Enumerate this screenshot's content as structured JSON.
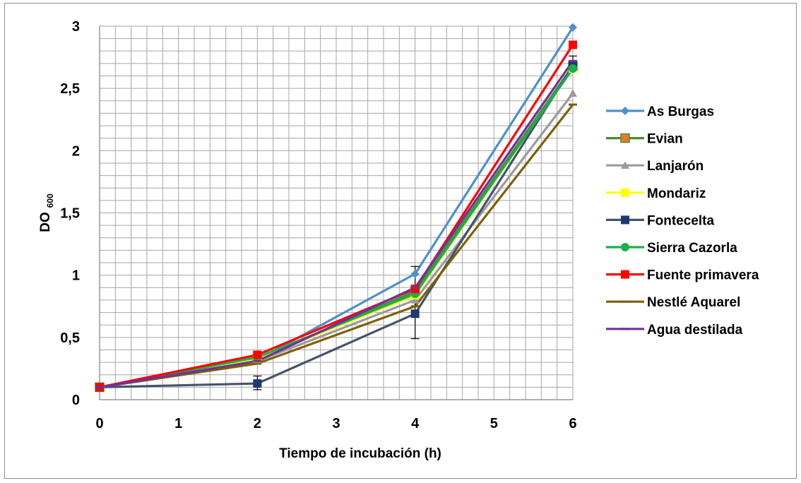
{
  "chart_data": {
    "type": "line",
    "title": "",
    "xlabel": "Tiempo de incubación (h)",
    "ylabel": "DO",
    "ylabel_sub": "600",
    "xlim": [
      0,
      6
    ],
    "ylim": [
      0,
      3
    ],
    "x_ticks": [
      "0",
      "1",
      "2",
      "3",
      "4",
      "5",
      "6"
    ],
    "y_ticks": [
      "0",
      "0,5",
      "1",
      "1,5",
      "2",
      "2,5",
      "3"
    ],
    "grid": true,
    "legend_position": "right",
    "x": [
      0,
      2,
      4,
      6
    ],
    "series": [
      {
        "name": "As Burgas",
        "values": [
          0.1,
          0.32,
          1.01,
          2.99
        ],
        "color": "#4f8fcb",
        "marker": "diamond"
      },
      {
        "name": "Evian",
        "values": [
          0.1,
          0.33,
          0.87,
          2.68
        ],
        "color": "#4e8a2e",
        "marker": "square-orange"
      },
      {
        "name": "Lanjarón",
        "values": [
          0.1,
          0.31,
          0.8,
          2.46
        ],
        "color": "#9b9b9b",
        "marker": "triangle"
      },
      {
        "name": "Mondariz",
        "values": [
          0.1,
          0.33,
          0.84,
          2.66
        ],
        "color": "#ffff00",
        "marker": "square"
      },
      {
        "name": "Fontecelta",
        "values": [
          0.1,
          0.13,
          0.69,
          2.68
        ],
        "color": "#1f3870",
        "marker": "square",
        "line_color": "#44546a"
      },
      {
        "name": "Sierra Cazorla",
        "values": [
          0.1,
          0.34,
          0.85,
          2.66
        ],
        "color": "#1ab04c",
        "marker": "circle"
      },
      {
        "name": "Fuente primavera",
        "values": [
          0.1,
          0.36,
          0.89,
          2.85
        ],
        "color": "#ff0000",
        "marker": "square"
      },
      {
        "name": "Nestlé Aquarel",
        "values": [
          0.1,
          0.29,
          0.75,
          2.37
        ],
        "color": "#7f6000",
        "marker": "dash"
      },
      {
        "name": "Agua destilada",
        "values": [
          0.1,
          0.31,
          0.9,
          2.72
        ],
        "color": "#7030a0",
        "marker": "dash"
      }
    ],
    "error_bars": [
      {
        "x": 2,
        "low": 0.08,
        "high": 0.19
      },
      {
        "x": 4,
        "low": 0.49,
        "high": 1.07
      },
      {
        "x": 6,
        "low": 2.65,
        "high": 2.76
      }
    ]
  }
}
